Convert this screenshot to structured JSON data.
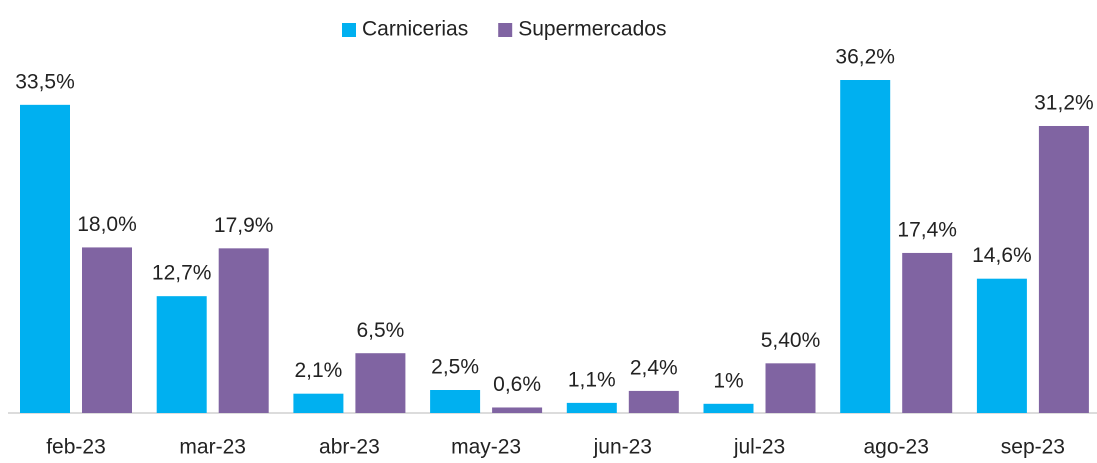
{
  "chart_data": {
    "type": "bar",
    "legend": "top",
    "categories": [
      "feb-23",
      "mar-23",
      "abr-23",
      "may-23",
      "jun-23",
      "jul-23",
      "ago-23",
      "sep-23"
    ],
    "series": [
      {
        "name": "Carnicerias",
        "color": "#00b0f0",
        "values": [
          33.5,
          12.7,
          2.1,
          2.5,
          1.1,
          1,
          36.2,
          14.6
        ],
        "value_labels": [
          "33,5%",
          "12,7%",
          "2,1%",
          "2,5%",
          "1,1%",
          "1%",
          "36,2%",
          "14,6%"
        ]
      },
      {
        "name": "Supermercados",
        "color": "#8064a2",
        "values": [
          18.0,
          17.9,
          6.5,
          0.6,
          2.4,
          5.4,
          17.4,
          31.2
        ],
        "value_labels": [
          "18,0%",
          "17,9%",
          "6,5%",
          "0,6%",
          "2,4%",
          "5,40%",
          "17,4%",
          "31,2%"
        ]
      }
    ]
  }
}
